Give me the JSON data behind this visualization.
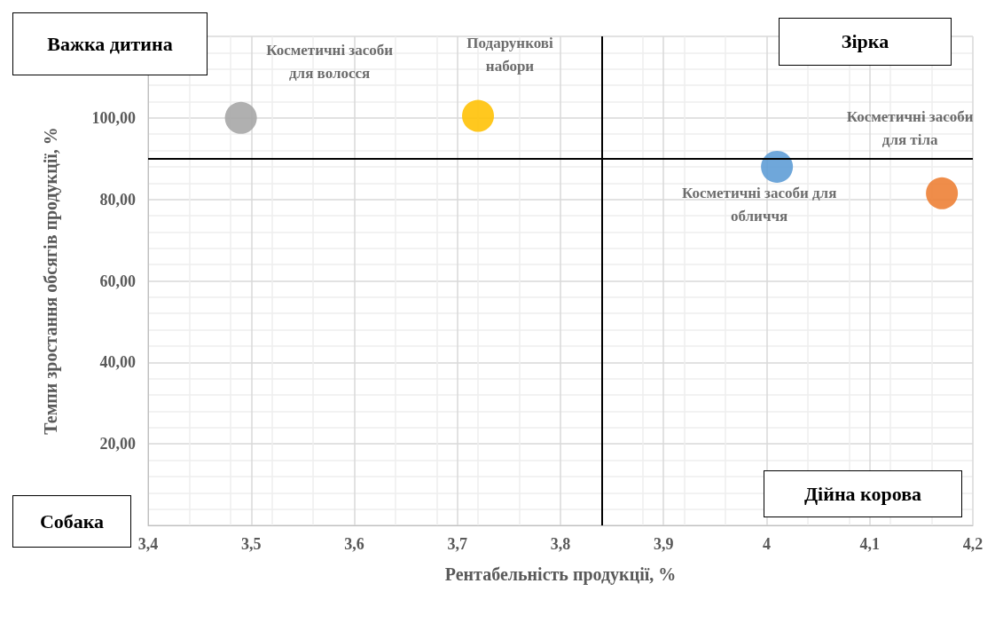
{
  "chart_data": {
    "type": "scatter",
    "xlabel": "Рентабельність продукції, %",
    "ylabel": "Темпи зростання обсягів продукції, %",
    "xlim": [
      3.4,
      4.2
    ],
    "xticks": [
      {
        "value": 3.4,
        "label": "3,4"
      },
      {
        "value": 3.5,
        "label": "3,5"
      },
      {
        "value": 3.6,
        "label": "3,6"
      },
      {
        "value": 3.7,
        "label": "3,7"
      },
      {
        "value": 3.8,
        "label": "3,8"
      },
      {
        "value": 3.9,
        "label": "3,9"
      },
      {
        "value": 4,
        "label": "4"
      },
      {
        "value": 4.1,
        "label": "4,1"
      },
      {
        "value": 4.2,
        "label": "4,2"
      }
    ],
    "ylim": [
      0,
      120
    ],
    "yticks": [
      {
        "value": 0,
        "label": null
      },
      {
        "value": 20,
        "label": "20,00"
      },
      {
        "value": 40,
        "label": "40,00"
      },
      {
        "value": 60,
        "label": "60,00"
      },
      {
        "value": 80,
        "label": "80,00"
      },
      {
        "value": 100,
        "label": "100,00"
      },
      {
        "value": 120,
        "label": null
      }
    ],
    "grid": true,
    "marker": "circle",
    "series": [
      {
        "name": "Косметичні засоби для волосся",
        "color": "#a5a5a5",
        "x": [
          3.49
        ],
        "values": [
          100
        ]
      },
      {
        "name": "Подарункові набори",
        "color": "#ffc000",
        "x": [
          3.72
        ],
        "values": [
          100.5
        ]
      },
      {
        "name": "Косметичні засоби для обличчя",
        "color": "#5b9bd5",
        "x": [
          4.01
        ],
        "values": [
          88
        ]
      },
      {
        "name": "Косметичні засоби для тіла",
        "color": "#ed7d31",
        "x": [
          4.17
        ],
        "values": [
          81.5
        ]
      }
    ],
    "ref_lines": [
      {
        "axis": "x",
        "value": 3.84,
        "color": "#000000"
      },
      {
        "axis": "y",
        "value": 90,
        "color": "#000000"
      }
    ],
    "annotations": [
      "Важка дитина",
      "Зірка",
      "Собака",
      "Дійна корова"
    ]
  }
}
